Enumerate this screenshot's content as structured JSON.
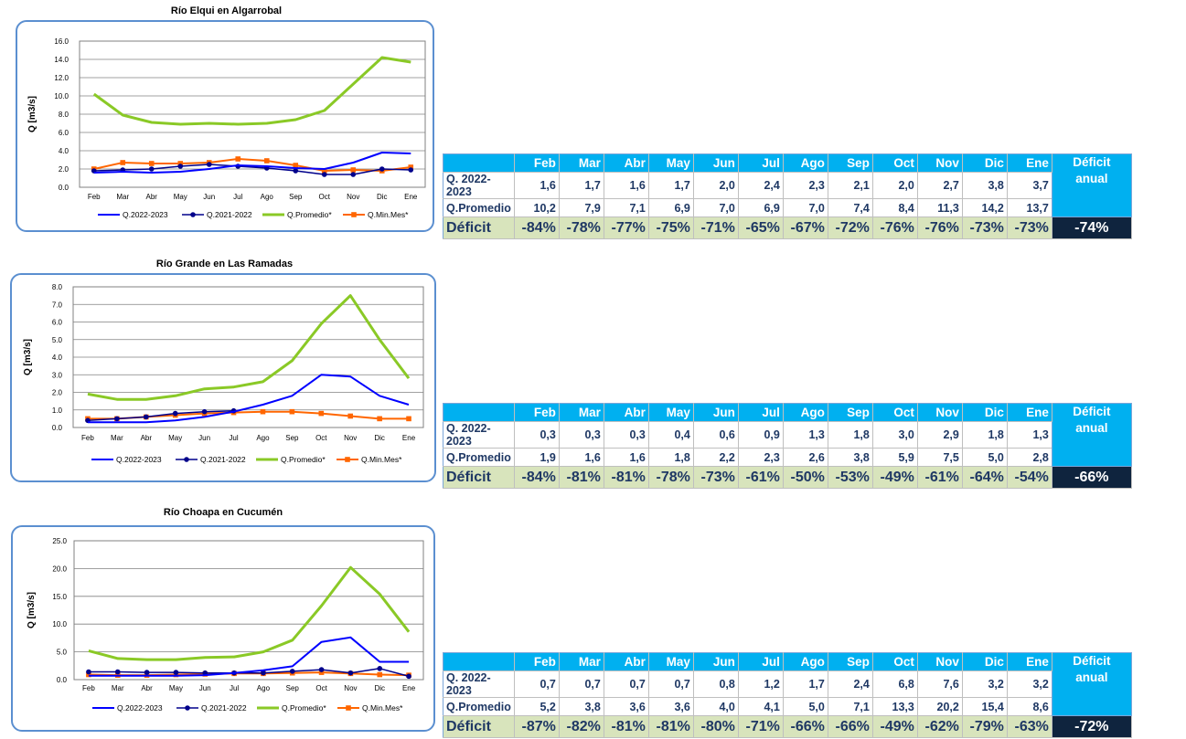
{
  "months": [
    "Feb",
    "Mar",
    "Abr",
    "May",
    "Jun",
    "Jul",
    "Ago",
    "Sep",
    "Oct",
    "Nov",
    "Dic",
    "Ene"
  ],
  "table_labels": {
    "row1": "Q. 2022-2023",
    "row2": "Q.Promedio",
    "row3": "Déficit",
    "annual_line1": "Déficit",
    "annual_line2": "anual"
  },
  "colors": {
    "q2223": "#0000ff",
    "q2122": "#00008b",
    "promedio": "#8ac926",
    "minmes": "#ff6600",
    "header": "#00b0f0",
    "deficit_row": "#d8e4bc",
    "annual_box": "#0f243e"
  },
  "chart_data": [
    {
      "type": "line",
      "title": "Río Elqui en Algarrobal",
      "ylabel": "Q [m3/s]",
      "ylim": [
        0,
        16
      ],
      "yticks": [
        "0.0",
        "2.0",
        "4.0",
        "6.0",
        "8.0",
        "10.0",
        "12.0",
        "14.0",
        "16.0"
      ],
      "x": [
        "Feb",
        "Mar",
        "Abr",
        "May",
        "Jun",
        "Jul",
        "Ago",
        "Sep",
        "Oct",
        "Nov",
        "Dic",
        "Ene"
      ],
      "grid": "horizontal",
      "legend": "bottom",
      "series": [
        {
          "name": "Q.2022-2023",
          "values": [
            1.6,
            1.7,
            1.6,
            1.7,
            2.0,
            2.4,
            2.3,
            2.1,
            2.0,
            2.7,
            3.8,
            3.7
          ]
        },
        {
          "name": "Q.2021-2022",
          "values": [
            1.8,
            1.9,
            2.0,
            2.3,
            2.5,
            2.3,
            2.1,
            1.8,
            1.4,
            1.4,
            2.0,
            1.9
          ]
        },
        {
          "name": "Q.Promedio*",
          "values": [
            10.2,
            7.9,
            7.1,
            6.9,
            7.0,
            6.9,
            7.0,
            7.4,
            8.4,
            11.3,
            14.2,
            13.7
          ]
        },
        {
          "name": "Q.Min.Mes*",
          "values": [
            2.0,
            2.7,
            2.6,
            2.6,
            2.7,
            3.1,
            2.9,
            2.4,
            1.8,
            1.9,
            1.8,
            2.2
          ]
        }
      ],
      "table": {
        "q2223": [
          "1,6",
          "1,7",
          "1,6",
          "1,7",
          "2,0",
          "2,4",
          "2,3",
          "2,1",
          "2,0",
          "2,7",
          "3,8",
          "3,7"
        ],
        "promedio": [
          "10,2",
          "7,9",
          "7,1",
          "6,9",
          "7,0",
          "6,9",
          "7,0",
          "7,4",
          "8,4",
          "11,3",
          "14,2",
          "13,7"
        ],
        "deficit": [
          "-84%",
          "-78%",
          "-77%",
          "-75%",
          "-71%",
          "-65%",
          "-67%",
          "-72%",
          "-76%",
          "-76%",
          "-73%",
          "-73%"
        ],
        "annual": "-74%"
      }
    },
    {
      "type": "line",
      "title": "Río Grande en Las Ramadas",
      "ylabel": "Q [m3/s]",
      "ylim": [
        0,
        8
      ],
      "yticks": [
        "0.0",
        "1.0",
        "2.0",
        "3.0",
        "4.0",
        "5.0",
        "6.0",
        "7.0",
        "8.0"
      ],
      "x": [
        "Feb",
        "Mar",
        "Abr",
        "May",
        "Jun",
        "Jul",
        "Ago",
        "Sep",
        "Oct",
        "Nov",
        "Dic",
        "Ene"
      ],
      "grid": "horizontal",
      "legend": "bottom",
      "series": [
        {
          "name": "Q.2022-2023",
          "values": [
            0.3,
            0.3,
            0.3,
            0.4,
            0.6,
            0.9,
            1.3,
            1.8,
            3.0,
            2.9,
            1.8,
            1.3
          ]
        },
        {
          "name": "Q.2021-2022",
          "values": [
            0.4,
            0.5,
            0.6,
            0.8,
            0.9,
            0.95,
            null,
            null,
            null,
            null,
            null,
            null
          ]
        },
        {
          "name": "Q.Promedio*",
          "values": [
            1.9,
            1.6,
            1.6,
            1.8,
            2.2,
            2.3,
            2.6,
            3.8,
            5.9,
            7.5,
            5.0,
            2.8
          ]
        },
        {
          "name": "Q.Min.Mes*",
          "values": [
            0.5,
            0.5,
            0.6,
            0.7,
            0.8,
            0.85,
            0.9,
            0.9,
            0.8,
            0.65,
            0.5,
            0.5
          ]
        }
      ],
      "table": {
        "q2223": [
          "0,3",
          "0,3",
          "0,3",
          "0,4",
          "0,6",
          "0,9",
          "1,3",
          "1,8",
          "3,0",
          "2,9",
          "1,8",
          "1,3"
        ],
        "promedio": [
          "1,9",
          "1,6",
          "1,6",
          "1,8",
          "2,2",
          "2,3",
          "2,6",
          "3,8",
          "5,9",
          "7,5",
          "5,0",
          "2,8"
        ],
        "deficit": [
          "-84%",
          "-81%",
          "-81%",
          "-78%",
          "-73%",
          "-61%",
          "-50%",
          "-53%",
          "-49%",
          "-61%",
          "-64%",
          "-54%"
        ],
        "annual": "-66%"
      }
    },
    {
      "type": "line",
      "title": "Río Choapa en Cucumén",
      "ylabel": "Q [m3/s]",
      "ylim": [
        0,
        25
      ],
      "yticks": [
        "0.0",
        "5.0",
        "10.0",
        "15.0",
        "20.0",
        "25.0"
      ],
      "x": [
        "Feb",
        "Mar",
        "Abr",
        "May",
        "Jun",
        "Jul",
        "Ago",
        "Sep",
        "Oct",
        "Nov",
        "Dic",
        "Ene"
      ],
      "grid": "horizontal",
      "legend": "bottom",
      "series": [
        {
          "name": "Q.2022-2023",
          "values": [
            0.7,
            0.7,
            0.7,
            0.7,
            0.8,
            1.2,
            1.7,
            2.4,
            6.8,
            7.6,
            3.2,
            3.2
          ]
        },
        {
          "name": "Q.2021-2022",
          "values": [
            1.4,
            1.4,
            1.3,
            1.3,
            1.2,
            1.2,
            1.2,
            1.5,
            1.8,
            1.2,
            2.0,
            0.6
          ]
        },
        {
          "name": "Q.Promedio*",
          "values": [
            5.2,
            3.8,
            3.6,
            3.6,
            4.0,
            4.1,
            5.0,
            7.1,
            13.3,
            20.2,
            15.4,
            8.6
          ]
        },
        {
          "name": "Q.Min.Mes*",
          "values": [
            0.9,
            0.8,
            0.8,
            0.9,
            1.0,
            1.1,
            1.1,
            1.2,
            1.3,
            1.1,
            0.9,
            0.8
          ]
        }
      ],
      "table": {
        "q2223": [
          "0,7",
          "0,7",
          "0,7",
          "0,7",
          "0,8",
          "1,2",
          "1,7",
          "2,4",
          "6,8",
          "7,6",
          "3,2",
          "3,2"
        ],
        "promedio": [
          "5,2",
          "3,8",
          "3,6",
          "3,6",
          "4,0",
          "4,1",
          "5,0",
          "7,1",
          "13,3",
          "20,2",
          "15,4",
          "8,6"
        ],
        "deficit": [
          "-87%",
          "-82%",
          "-81%",
          "-81%",
          "-80%",
          "-71%",
          "-66%",
          "-66%",
          "-49%",
          "-62%",
          "-79%",
          "-63%"
        ],
        "annual": "-72%"
      }
    }
  ]
}
